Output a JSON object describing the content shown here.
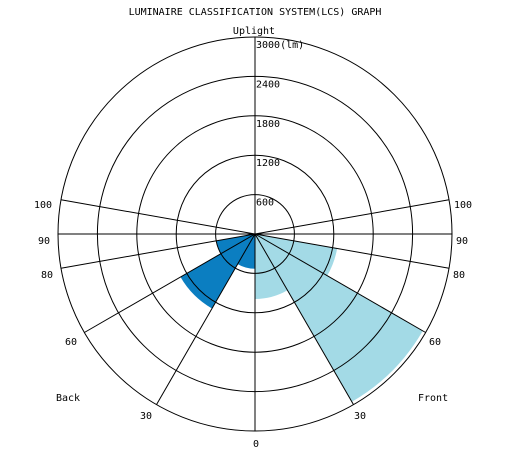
{
  "chart_data": {
    "type": "polar",
    "title": "LUMINAIRE CLASSIFICATION SYSTEM(LCS) GRAPH",
    "top_label": "Uplight",
    "bottom_label": "0",
    "left_side_label": "Back",
    "right_side_label": "Front",
    "radial_unit": "(lm)",
    "radial_max": 3000,
    "rings": [
      600,
      1200,
      1800,
      2400,
      3000
    ],
    "ring_labels": [
      "600",
      "1200",
      "1800",
      "2400",
      "3000"
    ],
    "angle_lines_deg": [
      0,
      30,
      60,
      80,
      90,
      100
    ],
    "angle_labels_left": [
      "30",
      "60",
      "80",
      "90",
      "100"
    ],
    "angle_labels_right": [
      "30",
      "60",
      "80",
      "90",
      "100"
    ],
    "zones": [
      {
        "side": "front",
        "from": 0,
        "to": 30,
        "lumens": 990,
        "color": "#a3dae6"
      },
      {
        "side": "front",
        "from": 30,
        "to": 60,
        "lumens": 2950,
        "color": "#a3dae6"
      },
      {
        "side": "front",
        "from": 60,
        "to": 80,
        "lumens": 1270,
        "color": "#a3dae6"
      },
      {
        "side": "front",
        "from": 80,
        "to": 90,
        "lumens": 0,
        "color": "#a3dae6"
      },
      {
        "side": "back",
        "from": 0,
        "to": 30,
        "lumens": 530,
        "color": "#0b7ec1"
      },
      {
        "side": "back",
        "from": 30,
        "to": 60,
        "lumens": 1310,
        "color": "#0b7ec1"
      },
      {
        "side": "back",
        "from": 60,
        "to": 80,
        "lumens": 600,
        "color": "#0b7ec1"
      },
      {
        "side": "back",
        "from": 80,
        "to": 90,
        "lumens": 0,
        "color": "#0b7ec1"
      }
    ]
  }
}
